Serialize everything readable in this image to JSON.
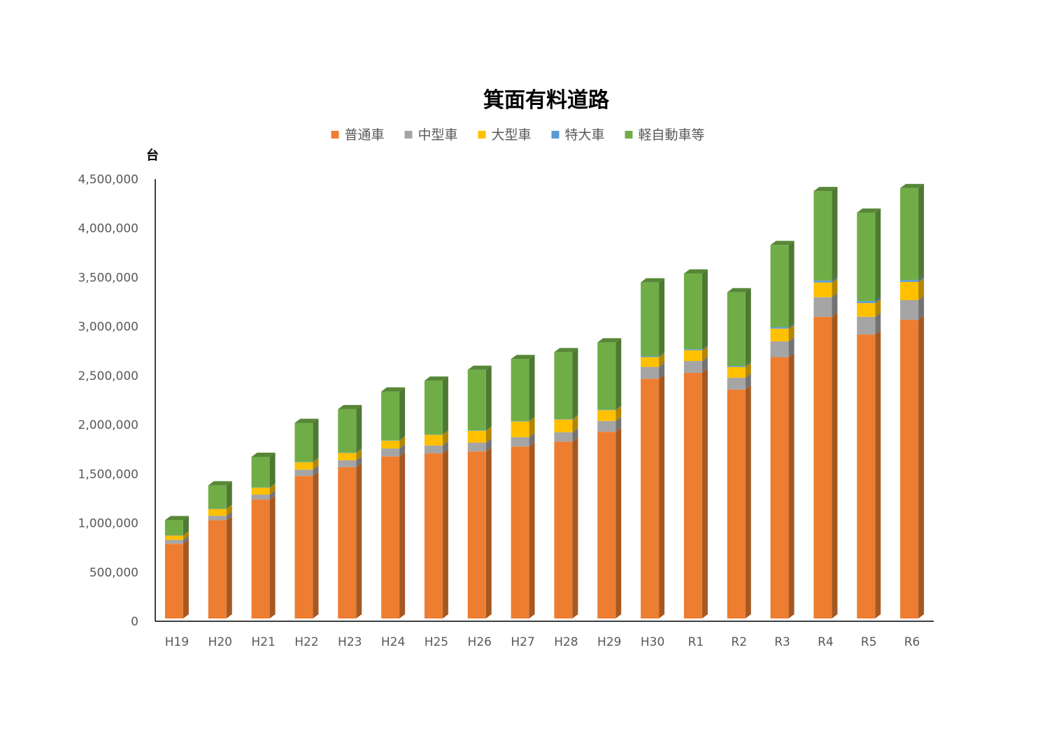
{
  "chart_data": {
    "type": "bar",
    "stacked": true,
    "three_d": true,
    "title": "箕面有料道路",
    "ylabel": "台",
    "ylim": [
      0,
      4500000
    ],
    "ytick_step": 500000,
    "yticks": [
      "0",
      "500,000",
      "1,000,000",
      "1,500,000",
      "2,000,000",
      "2,500,000",
      "3,000,000",
      "3,500,000",
      "4,000,000",
      "4,500,000"
    ],
    "grid": false,
    "legend_position": "top",
    "categories": [
      "H19",
      "H20",
      "H21",
      "H22",
      "H23",
      "H24",
      "H25",
      "H26",
      "H27",
      "H28",
      "H29",
      "H30",
      "R1",
      "R2",
      "R3",
      "R4",
      "R5",
      "R6"
    ],
    "series": [
      {
        "name": "普通車",
        "color": "#ED7D31",
        "values": [
          760000,
          1000000,
          1210000,
          1450000,
          1540000,
          1650000,
          1680000,
          1700000,
          1750000,
          1800000,
          1900000,
          2440000,
          2500000,
          2330000,
          2660000,
          3070000,
          2890000,
          3040000
        ]
      },
      {
        "name": "中型車",
        "color": "#A5A5A5",
        "values": [
          40000,
          45000,
          50000,
          65000,
          70000,
          80000,
          80000,
          90000,
          95000,
          95000,
          110000,
          120000,
          120000,
          120000,
          160000,
          200000,
          180000,
          200000
        ]
      },
      {
        "name": "大型車",
        "color": "#FFC000",
        "values": [
          45000,
          70000,
          70000,
          75000,
          75000,
          80000,
          110000,
          120000,
          160000,
          130000,
          110000,
          100000,
          110000,
          110000,
          130000,
          150000,
          140000,
          185000
        ]
      },
      {
        "name": "特大車",
        "color": "#5B9BD5",
        "values": [
          2000,
          2000,
          3000,
          3000,
          3000,
          3000,
          3000,
          3000,
          4000,
          4000,
          4000,
          10000,
          10000,
          10000,
          15000,
          20000,
          20000,
          20000
        ]
      },
      {
        "name": "軽自動車等",
        "color": "#70AD47",
        "values": [
          153000,
          238000,
          312000,
          397000,
          442000,
          497000,
          547000,
          617000,
          631000,
          681000,
          686000,
          750000,
          770000,
          750000,
          835000,
          910000,
          900000,
          935000
        ]
      }
    ]
  }
}
